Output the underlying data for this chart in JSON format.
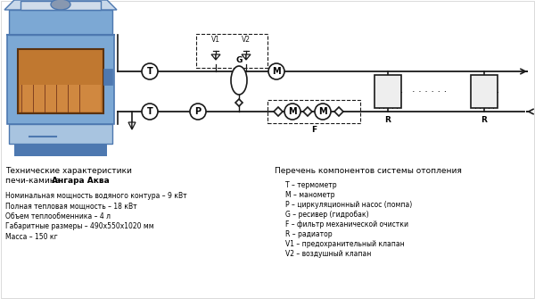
{
  "bg_color": "#ffffff",
  "title_left1": "Технические характеристики",
  "title_left2a": "печи-камина ",
  "title_left2b": "Ангара Аква",
  "specs": [
    "Номинальная мощность водяного контура – 9 кВт",
    "Полная тепловая мощность – 18 кВт",
    "Объем теплообменника – 4 л",
    "Габаритные размеры – 490х550х1020 мм",
    "Масса – 150 кг"
  ],
  "title_right": "Перечень компонентов системы отопления",
  "legend": [
    "T – термометр",
    "M – манометр",
    "P – циркуляционный насос (помпа)",
    "G – ресивер (гидробак)",
    "F – фильтр механической очистки",
    "R – радиатор",
    "V1 – предохранительный клапан",
    "V2 – воздушный клапан"
  ],
  "lc": "#1a1a1a",
  "lw": 1.2,
  "furnace_blue1": "#7ca8d4",
  "furnace_blue2": "#4d78b0",
  "furnace_blue3": "#a8c4e0",
  "furnace_top": "#c8d8ea",
  "furnace_window_bg": "#c07830",
  "furnace_window_inner": "#d08840"
}
